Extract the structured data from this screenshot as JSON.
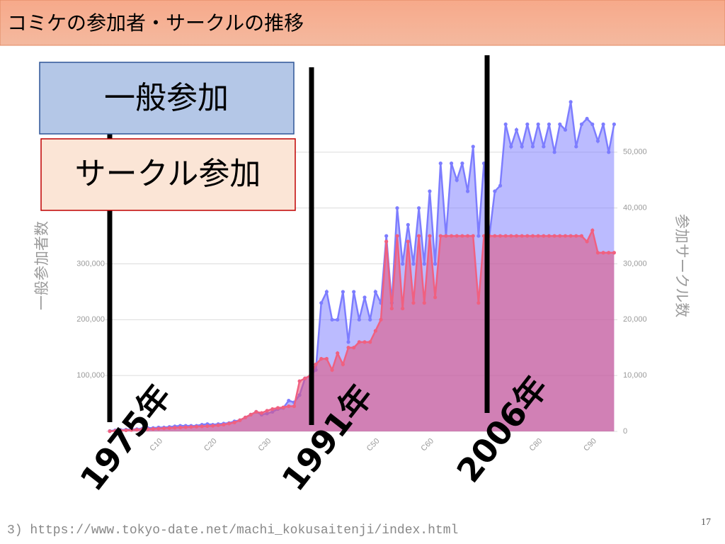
{
  "slide": {
    "title": "コミケの参加者・サークルの推移",
    "footnote": "3) https://www.tokyo-date.net/machi_kokusaitenji/index.html",
    "page_number": "17"
  },
  "chart_data": {
    "type": "area",
    "y_label": "一般参加者数",
    "y2_label": "参加サークル数",
    "annotations": [
      "1975年",
      "1991年",
      "2006年"
    ],
    "categories": [
      null,
      null,
      null,
      null,
      null,
      null,
      null,
      null,
      null,
      "C10",
      null,
      null,
      null,
      null,
      null,
      null,
      null,
      null,
      null,
      "C20",
      null,
      null,
      null,
      null,
      null,
      null,
      null,
      null,
      null,
      "C30",
      null,
      null,
      null,
      null,
      null,
      null,
      null,
      null,
      null,
      null,
      null,
      null,
      null,
      null,
      null,
      null,
      null,
      null,
      null,
      "C50",
      null,
      null,
      null,
      null,
      null,
      null,
      null,
      null,
      null,
      "C60",
      null,
      null,
      null,
      null,
      null,
      null,
      null,
      null,
      null,
      null,
      null,
      null,
      null,
      null,
      null,
      null,
      null,
      null,
      null,
      "C80",
      null,
      null,
      null,
      null,
      null,
      null,
      null,
      null,
      null,
      "C90",
      null,
      null,
      null,
      null
    ],
    "series": [
      {
        "name": "一般参加",
        "color": "#7d7dff",
        "axis": "y",
        "values": [
          700,
          2000,
          2500,
          3000,
          3500,
          4000,
          5000,
          6000,
          6000,
          7000,
          7000,
          8000,
          9000,
          10000,
          10000,
          10000,
          10000,
          12000,
          13000,
          12000,
          13000,
          14000,
          15000,
          18000,
          20000,
          25000,
          30000,
          35000,
          30000,
          32000,
          35000,
          40000,
          42000,
          55000,
          52000,
          65000,
          95000,
          100000,
          110000,
          230000,
          250000,
          200000,
          200000,
          250000,
          160000,
          250000,
          200000,
          240000,
          200000,
          250000,
          230000,
          350000,
          230000,
          400000,
          300000,
          370000,
          300000,
          400000,
          300000,
          430000,
          300000,
          480000,
          350000,
          480000,
          450000,
          480000,
          430000,
          510000,
          350000,
          480000,
          350000,
          430000,
          440000,
          550000,
          510000,
          540000,
          510000,
          550000,
          510000,
          550000,
          510000,
          550000,
          500000,
          550000,
          540000,
          590000,
          510000,
          550000,
          560000,
          550000,
          520000,
          550000,
          500000,
          550000
        ]
      },
      {
        "name": "サークル参加",
        "color": "#f06080",
        "axis": "y2",
        "values": [
          32,
          100,
          150,
          200,
          250,
          300,
          350,
          400,
          450,
          500,
          550,
          600,
          650,
          700,
          750,
          800,
          850,
          900,
          950,
          1000,
          1100,
          1200,
          1400,
          1600,
          2000,
          2500,
          3000,
          3500,
          3300,
          3700,
          4000,
          4200,
          4300,
          4500,
          4500,
          9000,
          9500,
          10000,
          12000,
          13000,
          13000,
          11000,
          14000,
          12000,
          15000,
          15000,
          16000,
          16000,
          16000,
          18000,
          20000,
          34000,
          22000,
          35000,
          22000,
          34000,
          23000,
          35000,
          23000,
          35000,
          24000,
          35000,
          35000,
          35000,
          35000,
          35000,
          35000,
          35000,
          23000,
          35000,
          35000,
          35000,
          35000,
          35000,
          35000,
          35000,
          35000,
          35000,
          35000,
          35000,
          35000,
          35000,
          35000,
          35000,
          35000,
          35000,
          35000,
          35000,
          34000,
          36000,
          32000,
          32000,
          32000,
          32000
        ]
      }
    ],
    "ylim": [
      0,
      600000
    ],
    "yticks": [
      {
        "value": 100000,
        "label": "100,000"
      },
      {
        "value": 200000,
        "label": "200,000"
      },
      {
        "value": 300000,
        "label": "300,000"
      }
    ],
    "y2lim": [
      0,
      60000
    ],
    "y2ticks": [
      0,
      {
        "value": 10000,
        "label": "10,000"
      },
      {
        "value": 20000,
        "label": "20,000"
      },
      {
        "value": 30000,
        "label": "30,000"
      },
      {
        "value": 40000,
        "label": "40,000"
      },
      {
        "value": 50000,
        "label": "50,000"
      }
    ],
    "grid": true
  }
}
